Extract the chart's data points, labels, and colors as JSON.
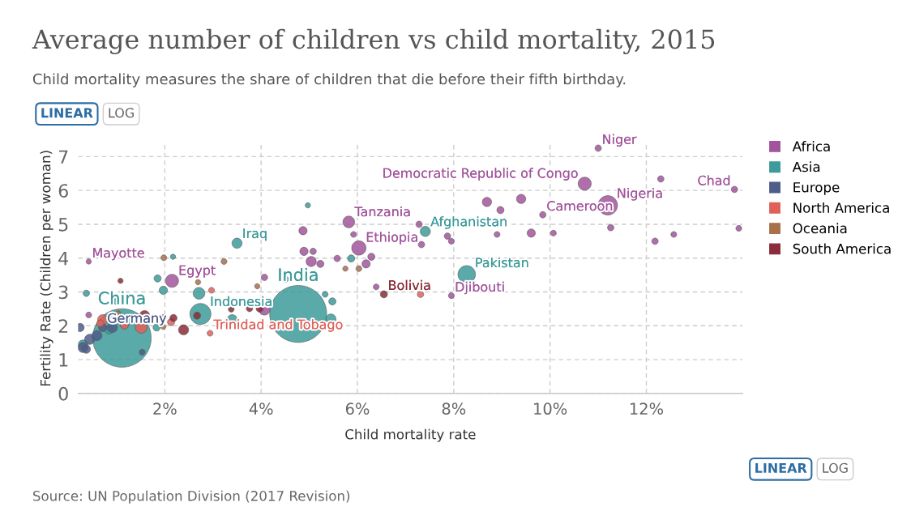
{
  "chart_data": {
    "type": "bubble",
    "title": "Average number of children vs child mortality, 2015",
    "subtitle": "Child mortality measures the share of children that die before their fifth birthday.",
    "xlabel": "Child mortality rate",
    "ylabel": "Fertility Rate (Children per woman)",
    "xlim": [
      0.2,
      14.0
    ],
    "ylim": [
      0,
      7.4
    ],
    "xticks": [
      {
        "value": 2,
        "label": "2%"
      },
      {
        "value": 4,
        "label": "4%"
      },
      {
        "value": 6,
        "label": "6%"
      },
      {
        "value": 8,
        "label": "8%"
      },
      {
        "value": 10,
        "label": "10%"
      },
      {
        "value": 12,
        "label": "12%"
      }
    ],
    "yticks": [
      0,
      1,
      2,
      3,
      4,
      5,
      6,
      7
    ],
    "grid": true,
    "legend": "right",
    "marker": "circle",
    "series": [
      {
        "name": "Africa",
        "color": "#a2559c",
        "x": [
          11.0,
          10.72,
          11.2,
          13.83,
          12.3,
          5.82,
          6.03,
          8.69,
          8.97,
          9.4,
          9.85,
          9.61,
          10.07,
          11.26,
          12.18,
          12.57,
          13.92,
          7.28,
          7.33,
          7.87,
          7.95,
          8.9,
          7.95,
          6.39,
          5.92,
          6.29,
          6.18,
          4.87,
          4.89,
          5.04,
          5.08,
          5.23,
          5.58,
          2.15,
          0.42,
          4.07,
          4.07,
          0.42
        ],
        "values": [
          7.25,
          6.2,
          5.56,
          6.03,
          6.34,
          5.07,
          4.3,
          5.66,
          5.42,
          5.75,
          5.28,
          4.74,
          4.74,
          4.9,
          4.5,
          4.7,
          4.88,
          5.0,
          4.4,
          4.65,
          4.5,
          4.7,
          2.89,
          3.15,
          4.7,
          4.04,
          3.83,
          4.81,
          4.2,
          3.9,
          4.2,
          3.83,
          3.99,
          3.33,
          3.9,
          3.43,
          2.49,
          2.32
        ],
        "sizes": [
          0.012,
          0.05,
          0.11,
          0.012,
          0.012,
          0.04,
          0.06,
          0.025,
          0.015,
          0.025,
          0.012,
          0.02,
          0.01,
          0.012,
          0.012,
          0.01,
          0.01,
          0.012,
          0.012,
          0.012,
          0.01,
          0.01,
          0.01,
          0.01,
          0.01,
          0.015,
          0.02,
          0.02,
          0.02,
          0.03,
          0.012,
          0.015,
          0.012,
          0.05,
          0.008,
          0.012,
          0.04,
          0.01
        ]
      },
      {
        "name": "Asia",
        "color": "#3d9b9a",
        "x": [
          4.77,
          1.11,
          8.27,
          7.41,
          3.5,
          2.74,
          2.71,
          4.97,
          5.87,
          2.17,
          1.85,
          1.97,
          4.5,
          0.37,
          1.0,
          5.33,
          5.48,
          5.45,
          3.4,
          1.83,
          0.3,
          0.84
        ],
        "values": [
          2.35,
          1.64,
          3.52,
          4.79,
          4.44,
          2.35,
          2.96,
          5.56,
          3.99,
          4.04,
          3.4,
          3.05,
          3.38,
          2.96,
          2.72,
          2.93,
          2.72,
          2.2,
          2.18,
          1.95,
          1.43,
          1.88
        ],
        "sizes": [
          0.95,
          1.0,
          0.09,
          0.03,
          0.03,
          0.13,
          0.04,
          0.008,
          0.015,
          0.008,
          0.015,
          0.02,
          0.012,
          0.012,
          0.012,
          0.01,
          0.015,
          0.03,
          0.03,
          0.015,
          0.03,
          0.02
        ]
      },
      {
        "name": "Europe",
        "color": "#4f5d8a",
        "x": [
          0.24,
          0.3,
          0.44,
          0.59,
          0.71,
          0.37,
          1.53,
          0.91
        ],
        "values": [
          1.95,
          1.36,
          1.6,
          1.71,
          1.95,
          1.31,
          1.22,
          1.95
        ],
        "sizes": [
          0.02,
          0.03,
          0.03,
          0.03,
          0.02,
          0.02,
          0.01,
          0.03
        ]
      },
      {
        "name": "North America",
        "color": "#e0615a",
        "x": [
          0.71,
          1.16,
          1.51,
          1.98,
          2.13,
          2.94,
          2.97,
          7.31,
          0.66
        ],
        "values": [
          2.18,
          2.02,
          1.95,
          2.25,
          2.11,
          1.78,
          3.05,
          2.93,
          2.07
        ],
        "sizes": [
          0.03,
          0.02,
          0.04,
          0.01,
          0.015,
          0.01,
          0.01,
          0.012,
          0.015
        ]
      },
      {
        "name": "Oceania",
        "color": "#a8704b",
        "x": [
          1.98,
          3.23,
          2.69,
          3.92,
          5.75,
          6.03,
          1.97,
          1.03
        ],
        "values": [
          4.01,
          3.9,
          3.29,
          3.17,
          3.69,
          3.69,
          1.97,
          2.37
        ],
        "sizes": [
          0.01,
          0.01,
          0.008,
          0.008,
          0.008,
          0.01,
          0.008,
          0.008
        ]
      },
      {
        "name": "South America",
        "color": "#8b2c3a",
        "x": [
          6.55,
          1.08,
          2.39,
          3.38,
          3.76,
          3.97,
          1.58,
          2.18,
          2.67
        ],
        "values": [
          2.93,
          3.33,
          1.88,
          2.49,
          2.51,
          2.51,
          2.3,
          2.23,
          2.3
        ],
        "sizes": [
          0.015,
          0.008,
          0.03,
          0.01,
          0.012,
          0.015,
          0.03,
          0.015,
          0.015
        ]
      }
    ],
    "annotations": [
      {
        "text": "Niger",
        "x": 11.0,
        "y": 7.25
      },
      {
        "text": "Democratic Republic of Congo",
        "x": 10.72,
        "y": 6.2
      },
      {
        "text": "Nigeria",
        "x": 11.2,
        "y": 5.56
      },
      {
        "text": "Chad",
        "x": 13.83,
        "y": 6.03
      },
      {
        "text": "Tanzania",
        "x": 5.82,
        "y": 5.07
      },
      {
        "text": "Ethiopia",
        "x": 6.03,
        "y": 4.3
      },
      {
        "text": "Afghanistan",
        "x": 7.41,
        "y": 4.79
      },
      {
        "text": "Cameroon",
        "x": 9.85,
        "y": 5.28
      },
      {
        "text": "Pakistan",
        "x": 8.27,
        "y": 3.52
      },
      {
        "text": "Bolivia",
        "x": 6.55,
        "y": 2.93
      },
      {
        "text": "Djibouti",
        "x": 7.95,
        "y": 2.89
      },
      {
        "text": "Iraq",
        "x": 3.5,
        "y": 4.44
      },
      {
        "text": "Mayotte",
        "x": 0.42,
        "y": 3.9
      },
      {
        "text": "Egypt",
        "x": 2.15,
        "y": 3.33
      },
      {
        "text": "India",
        "x": 4.77,
        "y": 2.35
      },
      {
        "text": "Indonesia",
        "x": 2.74,
        "y": 2.35
      },
      {
        "text": "China",
        "x": 1.11,
        "y": 1.64
      },
      {
        "text": "Trinidad and Tobago",
        "x": 2.94,
        "y": 1.78
      },
      {
        "text": "Germany",
        "x": 0.71,
        "y": 1.95
      },
      "Source: UN Population Division (2017 Revision)",
      "LINEAR",
      "LOG",
      "LINEAR",
      "LOG"
    ]
  }
}
